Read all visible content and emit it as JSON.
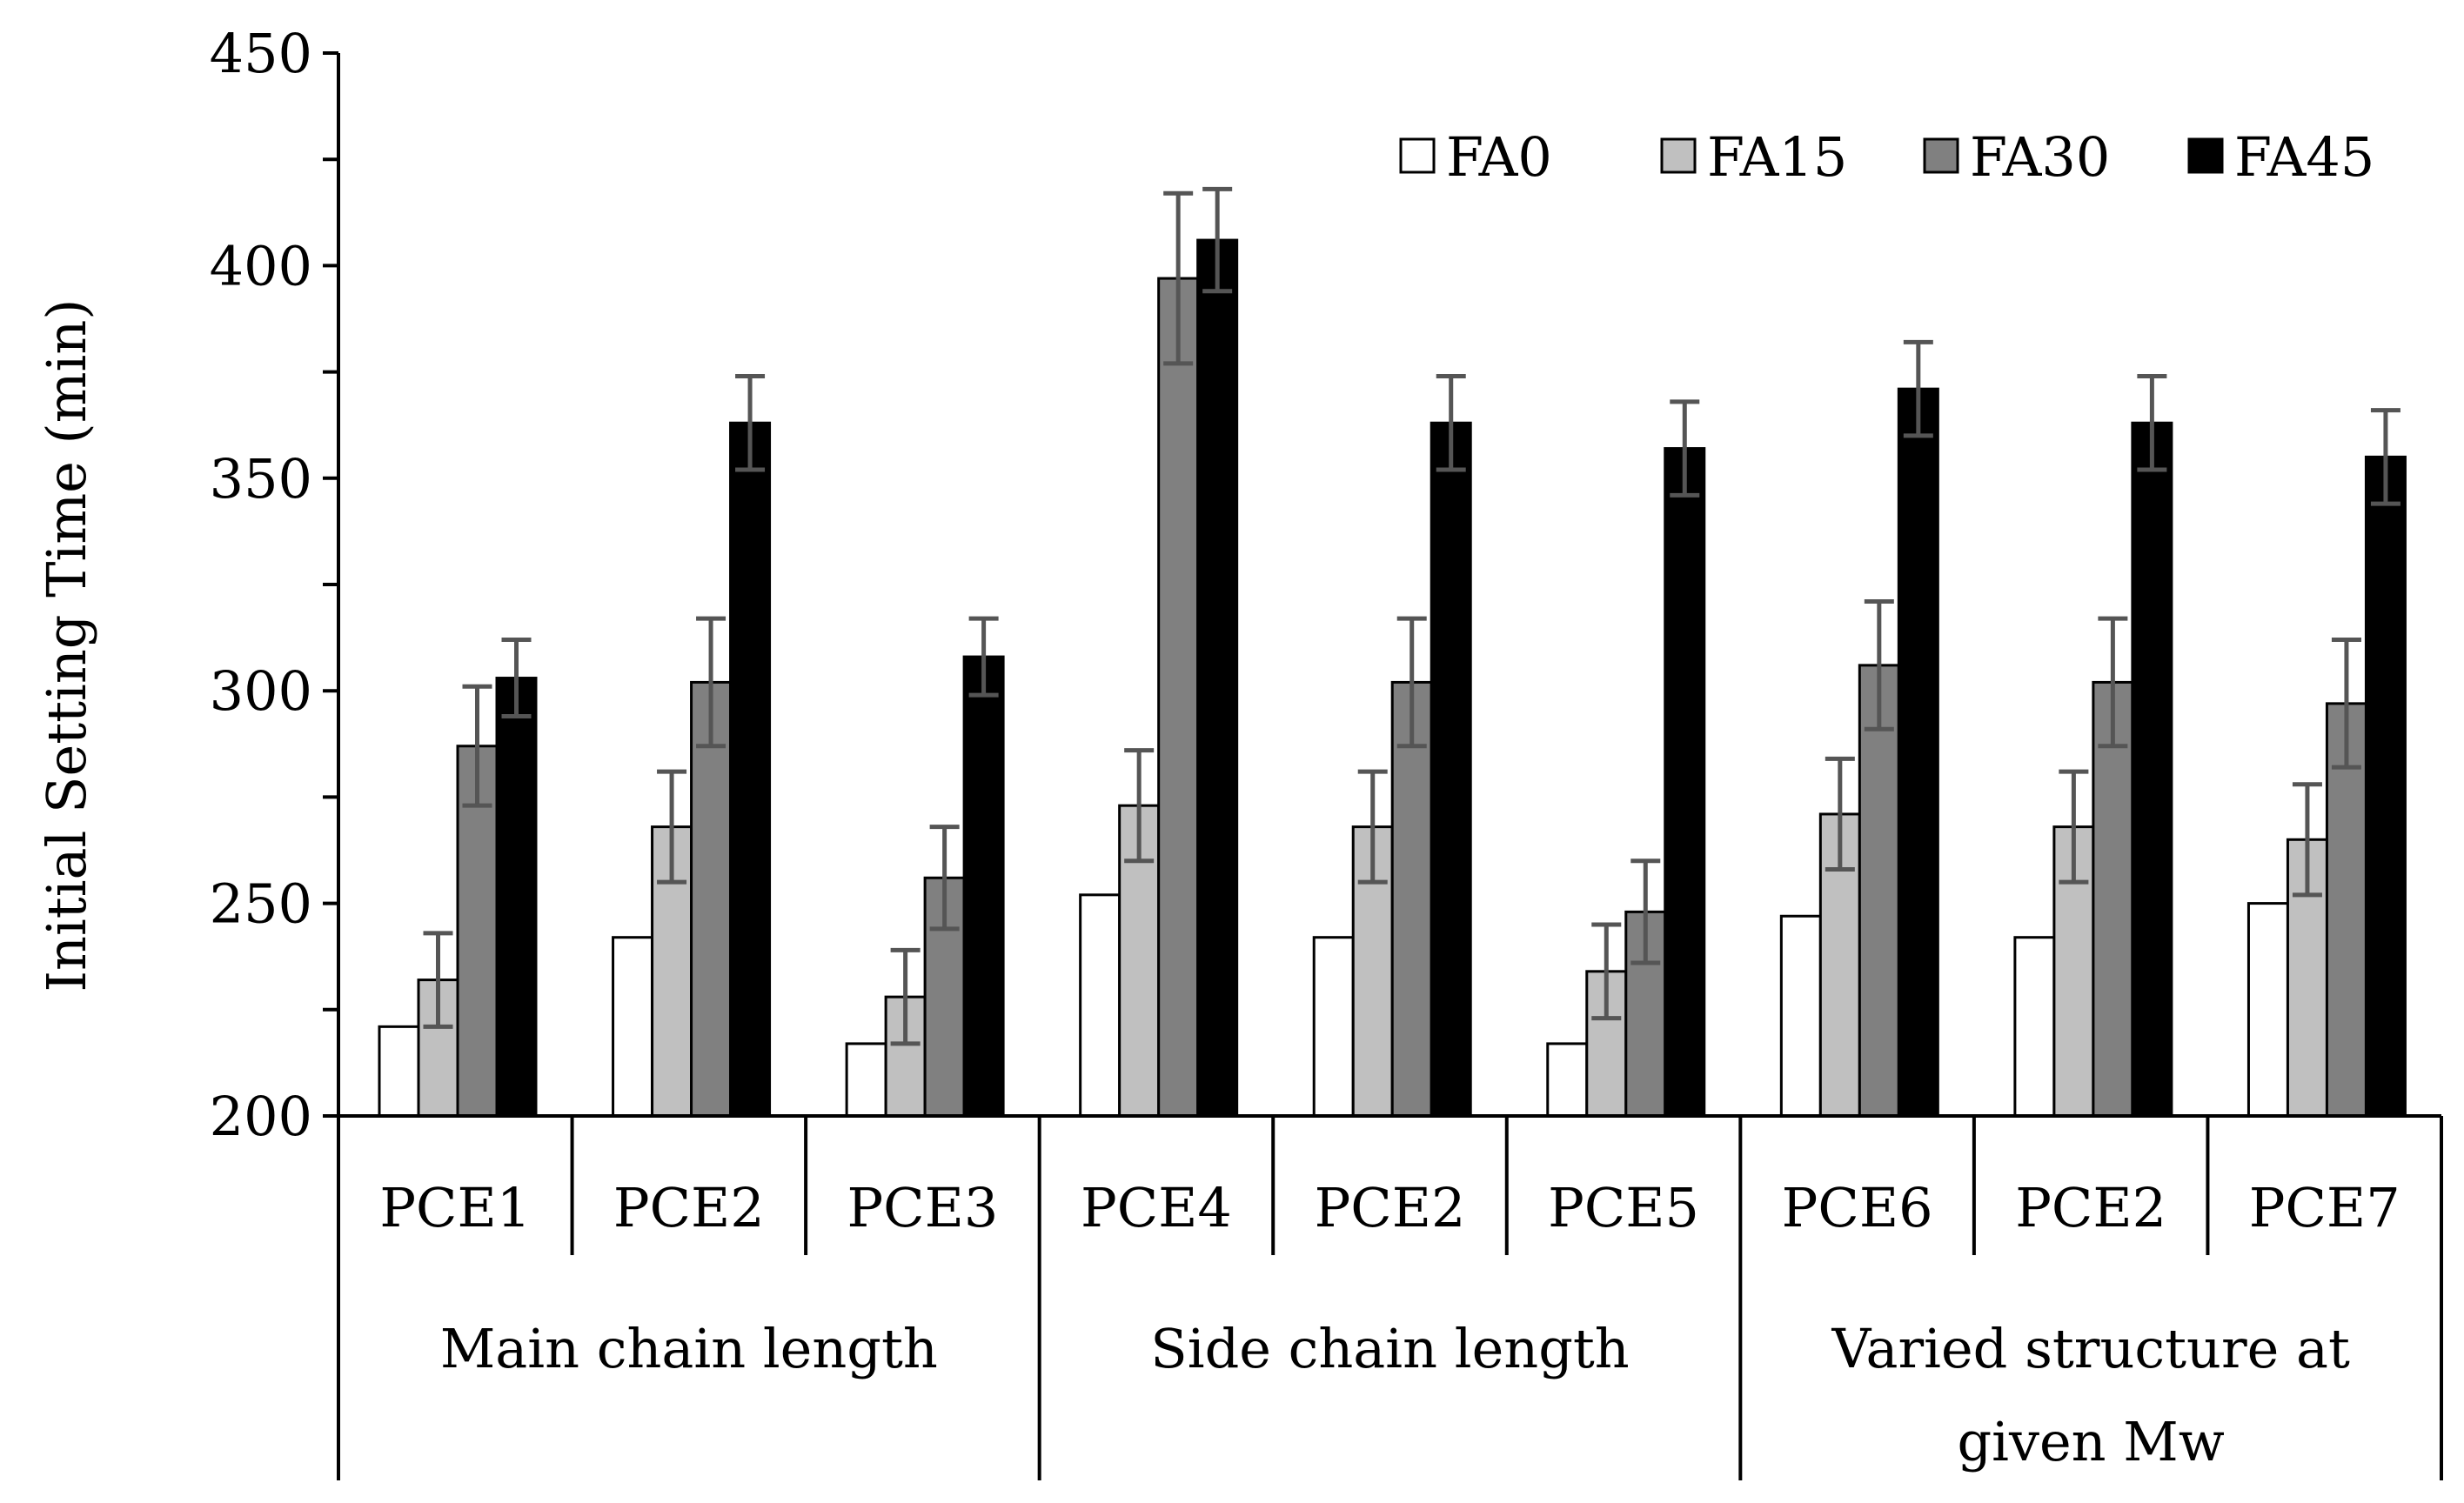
{
  "chart_data": {
    "type": "bar",
    "title": "",
    "xlabel": "",
    "ylabel": "Initial Setting Time (min)",
    "ylim": [
      200,
      450
    ],
    "yticks": [
      200,
      250,
      300,
      350,
      400,
      450
    ],
    "grid": false,
    "legend_position": "top-right",
    "categories": [
      "PCE1",
      "PCE2",
      "PCE3",
      "PCE4",
      "PCE2",
      "PCE5",
      "PCE6",
      "PCE2",
      "PCE7"
    ],
    "groups": [
      {
        "label": "Main chain length",
        "span": 3
      },
      {
        "label": "Side chain length",
        "span": 3
      },
      {
        "label": "Varied structure at given Mw",
        "span": 3
      }
    ],
    "series": [
      {
        "name": "FA0",
        "color": "#ffffff",
        "values": [
          221,
          242,
          217,
          252,
          242,
          217,
          247,
          242,
          250
        ],
        "errors": [
          0,
          0,
          0,
          0,
          0,
          0,
          0,
          0,
          0
        ]
      },
      {
        "name": "FA15",
        "color": "#c0c0c0",
        "values": [
          232,
          268,
          228,
          273,
          268,
          234,
          271,
          268,
          265
        ],
        "errors": [
          11,
          13,
          11,
          13,
          13,
          11,
          13,
          13,
          13
        ]
      },
      {
        "name": "FA30",
        "color": "#808080",
        "values": [
          287,
          302,
          256,
          397,
          302,
          248,
          306,
          302,
          297
        ],
        "errors": [
          14,
          15,
          12,
          20,
          15,
          12,
          15,
          15,
          15
        ]
      },
      {
        "name": "FA45",
        "color": "#000000",
        "values": [
          303,
          363,
          308,
          406,
          363,
          357,
          371,
          363,
          355
        ],
        "errors": [
          9,
          11,
          9,
          12,
          11,
          11,
          11,
          11,
          11
        ]
      }
    ]
  }
}
